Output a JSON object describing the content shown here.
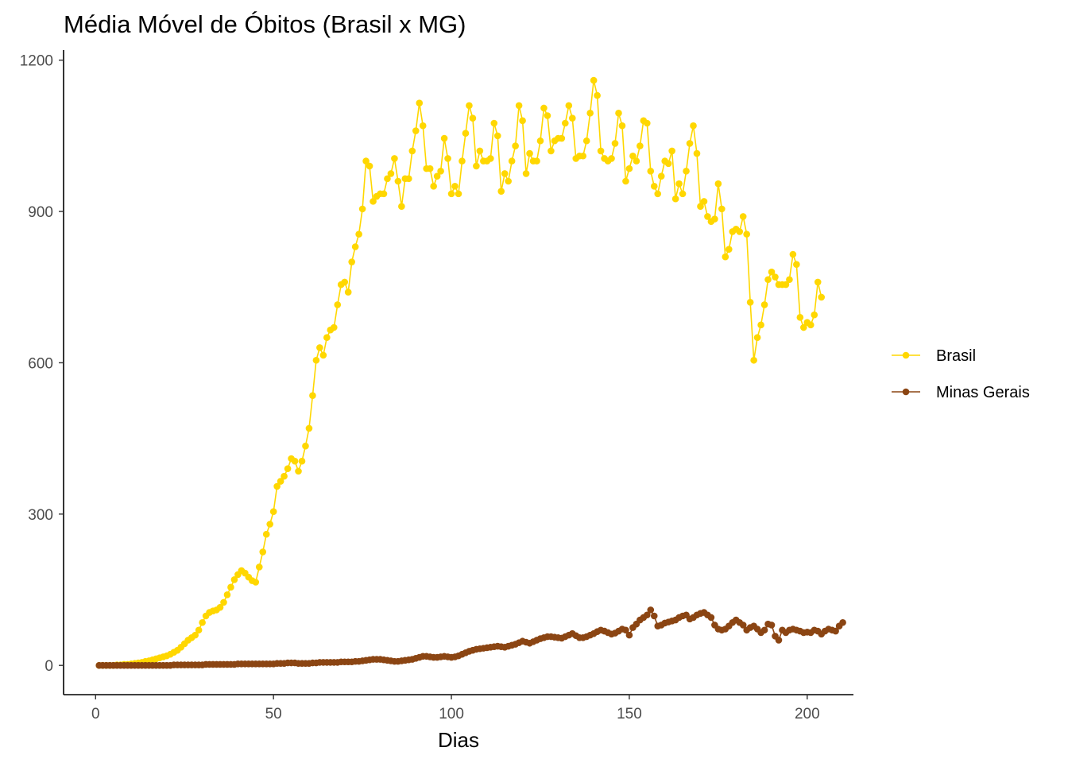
{
  "chart_data": {
    "type": "line",
    "title": "Média Móvel de Óbitos (Brasil x MG)",
    "xlabel": "Dias",
    "ylabel": "",
    "xlim": [
      -9,
      213
    ],
    "ylim": [
      -58,
      1220
    ],
    "x_ticks": [
      "0",
      "50",
      "100",
      "150",
      "200"
    ],
    "y_ticks": [
      "0",
      "300",
      "600",
      "900",
      "1200"
    ],
    "grid": false,
    "legend_position": "right",
    "series": [
      {
        "name": "Brasil",
        "color": "#FFD700",
        "x_start": 1,
        "values": [
          0,
          0,
          0,
          0,
          0,
          1,
          1,
          2,
          2,
          3,
          4,
          5,
          6,
          8,
          9,
          11,
          13,
          15,
          17,
          19,
          22,
          26,
          30,
          36,
          43,
          50,
          55,
          60,
          70,
          85,
          98,
          105,
          108,
          110,
          115,
          125,
          140,
          155,
          170,
          180,
          188,
          183,
          175,
          168,
          165,
          195,
          225,
          260,
          280,
          305,
          355,
          365,
          375,
          390,
          410,
          405,
          385,
          405,
          435,
          470,
          535,
          605,
          630,
          615,
          650,
          665,
          670,
          715,
          755,
          760,
          740,
          800,
          830,
          855,
          905,
          1000,
          990,
          920,
          930,
          935,
          935,
          965,
          975,
          1005,
          960,
          910,
          965,
          965,
          1020,
          1060,
          1115,
          1070,
          985,
          985,
          950,
          970,
          980,
          1045,
          1005,
          935,
          950,
          935,
          1000,
          1055,
          1110,
          1085,
          990,
          1020,
          1000,
          1000,
          1005,
          1075,
          1050,
          940,
          975,
          960,
          1000,
          1030,
          1110,
          1080,
          975,
          1015,
          1000,
          1000,
          1040,
          1105,
          1090,
          1020,
          1040,
          1045,
          1045,
          1075,
          1110,
          1085,
          1005,
          1010,
          1010,
          1040,
          1095,
          1160,
          1130,
          1020,
          1005,
          1000,
          1005,
          1035,
          1095,
          1070,
          960,
          985,
          1010,
          1000,
          1030,
          1080,
          1075,
          980,
          950,
          935,
          970,
          1000,
          995,
          1020,
          925,
          955,
          935,
          980,
          1035,
          1070,
          1015,
          910,
          920,
          890,
          880,
          885,
          955,
          905,
          810,
          825,
          860,
          865,
          860,
          890,
          855,
          720,
          605,
          650,
          675,
          715,
          765,
          780,
          770,
          755,
          755,
          755,
          765,
          815,
          795,
          690,
          670,
          680,
          675,
          695,
          760,
          730
        ]
      },
      {
        "name": "Minas Gerais",
        "color": "#8B4513",
        "x_start": 1,
        "values": [
          0,
          0,
          0,
          0,
          0,
          0,
          0,
          0,
          0,
          0,
          0,
          0,
          0,
          0,
          0,
          0,
          0,
          0,
          0,
          0,
          0,
          1,
          1,
          1,
          1,
          1,
          1,
          1,
          1,
          1,
          2,
          2,
          2,
          2,
          2,
          2,
          2,
          2,
          2,
          3,
          3,
          3,
          3,
          3,
          3,
          3,
          3,
          3,
          3,
          3,
          4,
          4,
          4,
          5,
          5,
          5,
          4,
          4,
          4,
          4,
          5,
          5,
          6,
          6,
          6,
          6,
          6,
          6,
          7,
          7,
          7,
          7,
          8,
          8,
          9,
          10,
          11,
          12,
          12,
          12,
          11,
          10,
          9,
          8,
          8,
          9,
          10,
          11,
          12,
          14,
          16,
          18,
          18,
          17,
          16,
          16,
          17,
          18,
          17,
          16,
          17,
          19,
          22,
          25,
          28,
          30,
          32,
          33,
          34,
          35,
          36,
          37,
          38,
          37,
          36,
          38,
          40,
          42,
          45,
          48,
          46,
          44,
          47,
          50,
          53,
          55,
          57,
          57,
          56,
          55,
          54,
          57,
          60,
          63,
          59,
          55,
          55,
          57,
          60,
          63,
          67,
          70,
          68,
          65,
          62,
          64,
          68,
          72,
          70,
          60,
          75,
          82,
          90,
          95,
          100,
          110,
          98,
          78,
          80,
          84,
          86,
          88,
          90,
          95,
          98,
          100,
          92,
          95,
          100,
          103,
          105,
          100,
          95,
          80,
          72,
          70,
          72,
          78,
          85,
          90,
          85,
          80,
          70,
          75,
          78,
          72,
          65,
          70,
          82,
          80,
          58,
          50,
          70,
          65,
          70,
          72,
          70,
          68,
          65,
          66,
          65,
          70,
          68,
          62,
          68,
          72,
          70,
          68,
          78,
          85
        ]
      }
    ]
  }
}
